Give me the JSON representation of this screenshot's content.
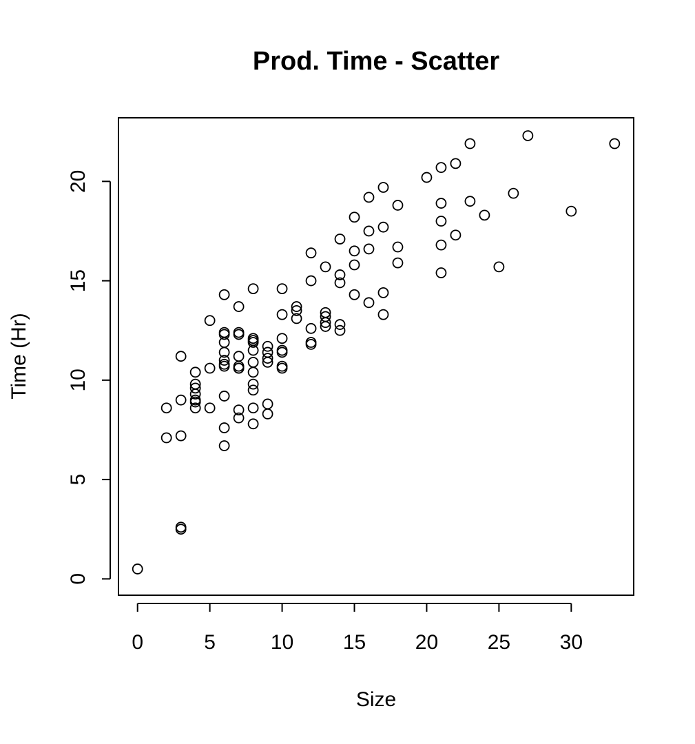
{
  "chart_data": {
    "type": "scatter",
    "title": "Prod. Time - Scatter",
    "xlabel": "Size",
    "ylabel": "Time (Hr)",
    "xlim": [
      -1.32,
      34.32
    ],
    "ylim": [
      -0.82,
      23.2
    ],
    "xticks": [
      0,
      5,
      10,
      15,
      20,
      25,
      30
    ],
    "yticks": [
      0,
      5,
      10,
      15,
      20
    ],
    "xtick_labels": [
      "0",
      "5",
      "10",
      "15",
      "20",
      "25",
      "30"
    ],
    "ytick_labels": [
      "0",
      "5",
      "10",
      "15",
      "20"
    ],
    "grid": false,
    "legend": "none",
    "marker": "open-circle",
    "point_color": "#000000",
    "x": [
      0,
      2,
      2,
      3,
      3,
      3,
      3,
      3,
      4,
      4,
      4,
      4,
      4,
      4,
      4,
      5,
      5,
      5,
      6,
      6,
      6,
      6,
      6,
      6,
      6,
      6,
      6,
      6,
      6,
      7,
      7,
      7,
      7,
      7,
      7,
      7,
      7,
      7,
      8,
      8,
      8,
      8,
      8,
      8,
      8,
      8,
      8,
      8,
      8,
      9,
      9,
      9,
      9,
      9,
      9,
      10,
      10,
      10,
      10,
      10,
      10,
      10,
      11,
      11,
      11,
      12,
      12,
      12,
      12,
      12,
      13,
      13,
      13,
      13,
      13,
      14,
      14,
      14,
      14,
      14,
      15,
      15,
      15,
      15,
      16,
      16,
      16,
      16,
      17,
      17,
      17,
      17,
      18,
      18,
      18,
      20,
      21,
      21,
      21,
      21,
      21,
      22,
      22,
      23,
      23,
      24,
      25,
      26,
      27,
      30,
      33
    ],
    "y": [
      0.5,
      8.6,
      7.1,
      11.2,
      9.0,
      7.2,
      2.6,
      2.5,
      10.4,
      9.8,
      9.6,
      9.3,
      9.0,
      8.9,
      8.6,
      13.0,
      10.6,
      8.6,
      14.3,
      12.4,
      12.3,
      11.9,
      11.4,
      11.0,
      10.8,
      10.7,
      9.2,
      7.6,
      6.7,
      13.7,
      12.4,
      12.3,
      11.2,
      10.7,
      10.6,
      8.5,
      8.1,
      10.6,
      14.6,
      12.1,
      11.9,
      11.5,
      10.9,
      10.4,
      9.8,
      9.5,
      8.6,
      7.8,
      12.0,
      11.7,
      11.4,
      11.1,
      10.9,
      8.8,
      8.3,
      14.6,
      13.3,
      12.1,
      11.5,
      11.4,
      10.7,
      10.6,
      13.7,
      13.5,
      13.1,
      16.4,
      15.0,
      12.6,
      11.9,
      11.8,
      15.7,
      13.4,
      13.2,
      12.9,
      12.7,
      17.1,
      15.3,
      14.9,
      12.8,
      12.5,
      18.2,
      16.5,
      15.8,
      14.3,
      19.2,
      17.5,
      16.6,
      13.9,
      19.7,
      17.7,
      14.4,
      13.3,
      18.8,
      16.7,
      15.9,
      20.2,
      20.7,
      18.9,
      18.0,
      16.8,
      15.4,
      20.9,
      17.3,
      21.9,
      19.0,
      18.3,
      15.7,
      19.4,
      22.3,
      18.5,
      21.9
    ]
  }
}
